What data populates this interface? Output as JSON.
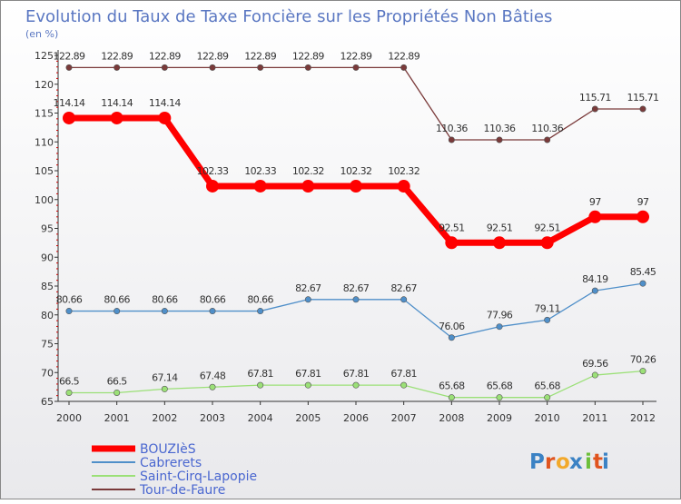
{
  "chart_data": {
    "type": "line",
    "title": "Evolution du Taux de Taxe Foncière sur les Propriétés Non Bâties",
    "subtitle": "(en %)",
    "x": [
      "2000",
      "2001",
      "2002",
      "2003",
      "2004",
      "2005",
      "2006",
      "2007",
      "2008",
      "2009",
      "2010",
      "2011",
      "2012"
    ],
    "ylim": [
      65,
      125
    ],
    "yticks": [
      65,
      70,
      75,
      80,
      85,
      90,
      95,
      100,
      105,
      110,
      115,
      120,
      125
    ],
    "series": [
      {
        "name": "BOUZIèS",
        "color": "#ff0000",
        "emphasis": true,
        "values": [
          114.14,
          114.14,
          114.14,
          102.33,
          102.33,
          102.32,
          102.32,
          102.32,
          92.51,
          92.51,
          92.51,
          97,
          97
        ],
        "labels": [
          "114.14",
          "114.14",
          "114.14",
          "102.33",
          "102.33",
          "102.32",
          "102.32",
          "102.32",
          "92.51",
          "92.51",
          "92.51",
          "97",
          "97"
        ]
      },
      {
        "name": "Cabrerets",
        "color": "#4f8fc9",
        "emphasis": false,
        "values": [
          80.66,
          80.66,
          80.66,
          80.66,
          80.66,
          82.67,
          82.67,
          82.67,
          76.06,
          77.96,
          79.11,
          84.19,
          85.45
        ],
        "labels": [
          "80.66",
          "80.66",
          "80.66",
          "80.66",
          "80.66",
          "82.67",
          "82.67",
          "82.67",
          "76.06",
          "77.96",
          "79.11",
          "84.19",
          "85.45"
        ]
      },
      {
        "name": "Saint-Cirq-Lapopie",
        "color": "#9be077",
        "emphasis": false,
        "values": [
          66.5,
          66.5,
          67.14,
          67.48,
          67.81,
          67.81,
          67.81,
          67.81,
          65.68,
          65.68,
          65.68,
          69.56,
          70.26
        ],
        "labels": [
          "66.5",
          "66.5",
          "67.14",
          "67.48",
          "67.81",
          "67.81",
          "67.81",
          "67.81",
          "65.68",
          "65.68",
          "65.68",
          "69.56",
          "70.26"
        ]
      },
      {
        "name": "Tour-de-Faure",
        "color": "#7a3a3a",
        "emphasis": false,
        "values": [
          122.89,
          122.89,
          122.89,
          122.89,
          122.89,
          122.89,
          122.89,
          122.89,
          110.36,
          110.36,
          110.36,
          115.71,
          115.71
        ],
        "labels": [
          "122.89",
          "122.89",
          "122.89",
          "122.89",
          "122.89",
          "122.89",
          "122.89",
          "122.89",
          "110.36",
          "110.36",
          "110.36",
          "115.71",
          "115.71"
        ]
      }
    ],
    "legend": "bottom-left",
    "grid": false
  },
  "brand": {
    "letters": [
      "P",
      "r",
      "o",
      "x",
      "i",
      "t",
      "i"
    ],
    "colors": [
      "#3b82c4",
      "#e0541e",
      "#f2a92b",
      "#3b82c4",
      "#6cbf3a",
      "#e0541e",
      "#3b82c4"
    ]
  }
}
